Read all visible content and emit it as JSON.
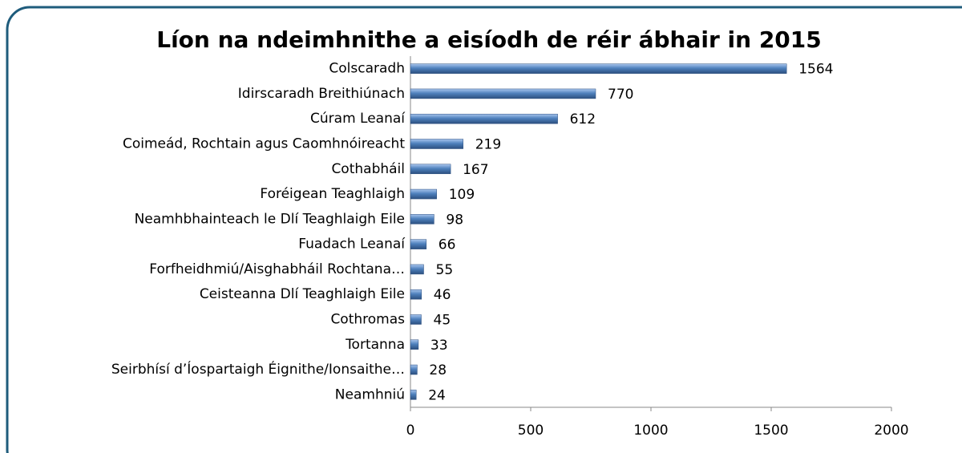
{
  "chart_data": {
    "type": "bar",
    "orientation": "horizontal",
    "title": "Líon na ndeimhnithe a eisíodh de réir ábhair in 2015",
    "categories": [
      "Colscaradh",
      "Idirscaradh Breithiúnach",
      "Cúram Leanaí",
      "Coimeád, Rochtain agus Caomhnóireacht",
      "Cothabháil",
      "Foréigean Teaghlaigh",
      "Neamhbhainteach le Dlí Teaghlaigh Eile",
      "Fuadach Leanaí",
      "Forfheidhmiú/Aisghabháil Rochtana…",
      "Ceisteanna Dlí Teaghlaigh Eile",
      "Cothromas",
      "Tortanna",
      "Seirbhísí d’Íospartaigh Éignithe/Ionsaithe…",
      "Neamhniú"
    ],
    "values": [
      1564,
      770,
      612,
      219,
      167,
      109,
      98,
      66,
      55,
      46,
      45,
      33,
      28,
      24
    ],
    "color": "#4f81bd",
    "xlim": [
      0,
      2000
    ],
    "xticks": [
      0,
      500,
      1000,
      1500,
      2000
    ],
    "grid": false
  }
}
